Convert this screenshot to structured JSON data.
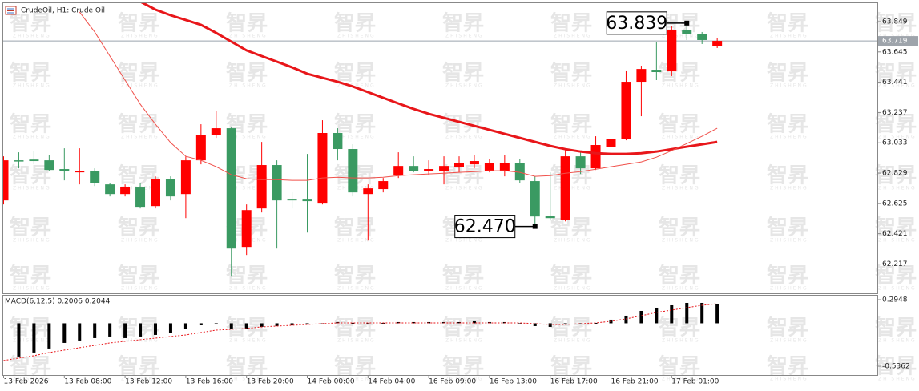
{
  "chart_data": [
    {
      "type": "candlestick",
      "title": "CrudeOil, H1:  Crude Oil",
      "categories": [
        "13 Feb 2026",
        null,
        null,
        null,
        "13 Feb 08:00",
        null,
        null,
        null,
        "13 Feb 12:00",
        null,
        null,
        null,
        "13 Feb 16:00",
        null,
        null,
        null,
        "13 Feb 20:00",
        null,
        null,
        null,
        "14 Feb 00:00",
        null,
        null,
        null,
        "14 Feb 04:00",
        null,
        null,
        null,
        "16 Feb 09:00",
        null,
        null,
        null,
        "16 Feb 13:00",
        null,
        null,
        null,
        "16 Feb 17:00",
        null,
        null,
        null,
        "16 Feb 21:00",
        null,
        null,
        null,
        "17 Feb 01:00",
        null,
        null,
        null
      ],
      "open": [
        62.645,
        62.915,
        62.92,
        62.915,
        62.856,
        62.834,
        62.84,
        62.753,
        62.688,
        62.732,
        62.607,
        62.786,
        62.688,
        62.915,
        63.088,
        63.131,
        62.332,
        62.591,
        62.883,
        62.656,
        62.656,
        62.629,
        63.099,
        62.991,
        62.688,
        62.721,
        62.818,
        62.877,
        62.845,
        62.84,
        62.867,
        62.888,
        62.845,
        62.845,
        62.894,
        62.775,
        62.542,
        62.515,
        62.942,
        62.861,
        63.007,
        63.061,
        63.444,
        63.525,
        63.514,
        63.795,
        63.763,
        63.687
      ],
      "high": [
        62.942,
        62.969,
        62.98,
        62.953,
        62.996,
        62.996,
        62.861,
        62.764,
        62.753,
        62.764,
        62.807,
        62.807,
        62.942,
        63.158,
        63.25,
        63.142,
        62.618,
        63.039,
        62.915,
        62.699,
        62.958,
        63.185,
        63.131,
        63.023,
        62.753,
        62.796,
        62.969,
        62.942,
        62.915,
        62.942,
        62.942,
        62.953,
        62.926,
        62.953,
        62.926,
        62.807,
        62.834,
        62.996,
        62.969,
        63.077,
        63.158,
        63.52,
        63.552,
        63.714,
        63.822,
        63.839,
        63.779,
        63.741
      ],
      "low": [
        62.618,
        62.861,
        62.888,
        62.84,
        62.78,
        62.753,
        62.742,
        62.672,
        62.672,
        62.591,
        62.591,
        62.645,
        62.526,
        62.888,
        63.066,
        62.132,
        62.278,
        62.564,
        62.321,
        62.591,
        62.429,
        62.618,
        62.915,
        62.672,
        62.375,
        62.699,
        62.796,
        62.834,
        62.818,
        62.753,
        62.834,
        62.861,
        62.834,
        62.807,
        62.764,
        62.47,
        62.51,
        62.504,
        62.823,
        62.85,
        62.98,
        63.05,
        63.212,
        63.455,
        63.482,
        63.725,
        63.698,
        63.671
      ],
      "close": [
        62.915,
        62.91,
        62.91,
        62.85,
        62.84,
        62.845,
        62.764,
        62.688,
        62.737,
        62.602,
        62.786,
        62.672,
        62.915,
        63.088,
        63.131,
        62.321,
        62.58,
        62.883,
        62.645,
        62.645,
        62.64,
        63.099,
        62.991,
        62.699,
        62.726,
        62.775,
        62.877,
        62.845,
        62.856,
        62.877,
        62.899,
        62.91,
        62.899,
        62.894,
        62.78,
        62.537,
        62.526,
        62.942,
        62.861,
        63.018,
        63.061,
        63.444,
        63.53,
        63.509,
        63.795,
        63.763,
        63.725,
        63.719
      ],
      "up_color": "#ff0000",
      "down_color": "#3a9a62",
      "lines": [
        {
          "color": "#e8161a",
          "width": 3,
          "values": [
            null,
            null,
            null,
            null,
            null,
            null,
            null,
            null,
            null,
            63.984,
            63.93,
            63.892,
            63.86,
            63.827,
            63.773,
            63.714,
            63.655,
            63.617,
            63.579,
            63.541,
            63.498,
            63.471,
            63.444,
            63.412,
            63.374,
            63.336,
            63.298,
            63.261,
            63.228,
            63.201,
            63.174,
            63.147,
            63.12,
            63.093,
            63.066,
            63.039,
            63.012,
            62.99,
            62.974,
            62.963,
            62.958,
            62.958,
            62.963,
            62.974,
            62.99,
            63.007,
            63.023,
            63.039
          ]
        },
        {
          "color": "#f0504a",
          "width": 1,
          "values": [
            null,
            null,
            null,
            null,
            null,
            63.914,
            63.779,
            63.617,
            63.455,
            63.293,
            63.158,
            63.034,
            62.942,
            62.915,
            62.872,
            62.818,
            62.791,
            62.785,
            62.785,
            62.78,
            62.78,
            62.796,
            62.801,
            62.796,
            62.796,
            62.801,
            62.812,
            62.818,
            62.823,
            62.828,
            62.834,
            62.839,
            62.845,
            62.845,
            62.834,
            62.807,
            62.812,
            62.828,
            62.839,
            62.855,
            62.872,
            62.888,
            62.904,
            62.936,
            62.98,
            63.028,
            63.077,
            63.131
          ]
        }
      ],
      "ylim": [
        62.02,
        63.973
      ],
      "yticks": [
        63.849,
        63.645,
        63.441,
        63.237,
        63.033,
        62.829,
        62.625,
        62.421,
        62.217
      ],
      "price_labels": [
        {
          "value": 63.839,
          "label": "63.839"
        },
        {
          "value": 62.47,
          "label": "62.470"
        }
      ],
      "current_price": 63.719,
      "watermark": "智昇",
      "watermark_sub": "ZHISHENG"
    },
    {
      "type": "macd",
      "title": "MACD(6,12,5) 0.2006 0.2044",
      "values": [
        null,
        -0.415,
        -0.365,
        -0.315,
        -0.245,
        -0.215,
        -0.185,
        -0.165,
        -0.185,
        -0.165,
        -0.145,
        -0.125,
        -0.075,
        -0.025,
        -0.005,
        -0.065,
        -0.075,
        -0.045,
        -0.035,
        -0.025,
        -0.015,
        -0.005,
        0.015,
        0.005,
        -0.005,
        0.005,
        0.015,
        0.015,
        0.015,
        0.015,
        0.015,
        0.025,
        0.015,
        0.015,
        -0.015,
        -0.035,
        -0.045,
        -0.015,
        -0.005,
        0.005,
        0.045,
        0.095,
        0.155,
        0.195,
        0.225,
        0.255,
        0.255,
        0.235
      ],
      "color": "#000000",
      "signal": {
        "color": "#e8161a",
        "values": [
          -0.465,
          -0.435,
          -0.405,
          -0.365,
          -0.335,
          -0.305,
          -0.275,
          -0.245,
          -0.225,
          -0.205,
          -0.185,
          -0.165,
          -0.145,
          -0.115,
          -0.085,
          -0.075,
          -0.065,
          -0.045,
          -0.035,
          -0.025,
          -0.015,
          -0.005,
          0.005,
          0.005,
          0.005,
          0.005,
          0.005,
          0.005,
          0.005,
          0.005,
          0.005,
          0.005,
          0.005,
          0.005,
          0.005,
          -0.005,
          -0.015,
          -0.015,
          -0.005,
          0.005,
          0.025,
          0.055,
          0.095,
          0.135,
          0.165,
          0.195,
          0.225,
          0.245
        ]
      },
      "ylim": [
        -0.646,
        0.345
      ],
      "yticks": [
        0.2948,
        -0.5362
      ]
    }
  ]
}
